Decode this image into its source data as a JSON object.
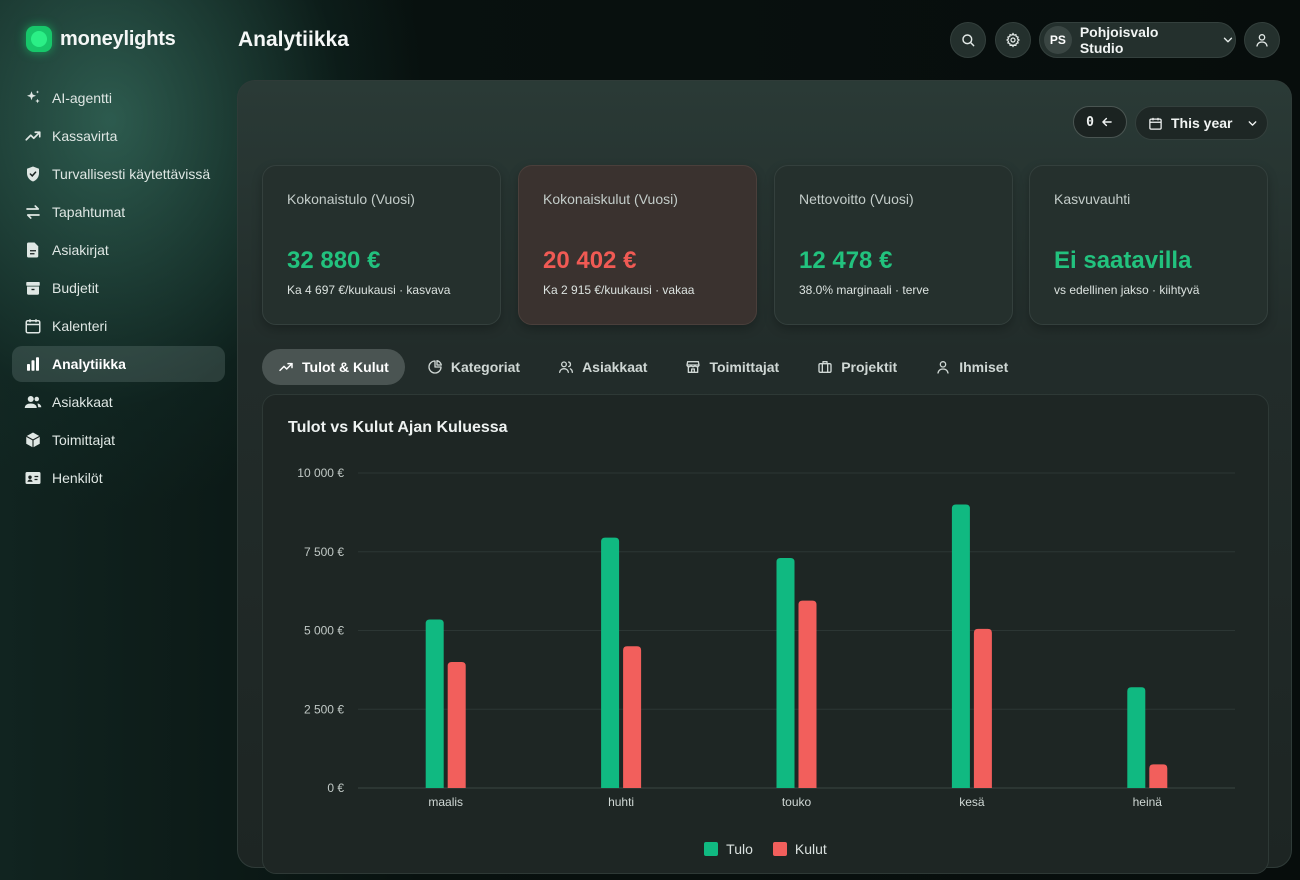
{
  "app": {
    "logo_text": "moneylights"
  },
  "sidebar": {
    "items": [
      {
        "label": "AI-agentti",
        "icon": "sparkles-icon"
      },
      {
        "label": "Kassavirta",
        "icon": "trending-up-icon"
      },
      {
        "label": "Turvallisesti käytettävissä",
        "icon": "shield-icon"
      },
      {
        "label": "Tapahtumat",
        "icon": "arrows-exchange-icon"
      },
      {
        "label": "Asiakirjat",
        "icon": "document-icon"
      },
      {
        "label": "Budjetit",
        "icon": "archive-box-icon"
      },
      {
        "label": "Kalenteri",
        "icon": "calendar-icon"
      },
      {
        "label": "Analytiikka",
        "icon": "bar-chart-icon",
        "active": true
      },
      {
        "label": "Asiakkaat",
        "icon": "users-icon"
      },
      {
        "label": "Toimittajat",
        "icon": "cube-icon"
      },
      {
        "label": "Henkilöt",
        "icon": "id-card-icon"
      }
    ]
  },
  "header": {
    "title": "Analytiikka",
    "org_initials": "PS",
    "org_name": "Pohjoisvalo Studio"
  },
  "toolbar": {
    "zero_label": "0",
    "period_label": "This year"
  },
  "kpis": [
    {
      "label": "Kokonaistulo (Vuosi)",
      "value": "32 880 €",
      "sub": "Ka 4 697 €/kuukausi · kasvava",
      "tone": "green"
    },
    {
      "label": "Kokonaiskulut (Vuosi)",
      "value": "20 402 €",
      "sub": "Ka 2 915 €/kuukausi · vakaa",
      "tone": "red"
    },
    {
      "label": "Nettovoitto (Vuosi)",
      "value": "12 478 €",
      "sub": "38.0% marginaali · terve",
      "tone": "green"
    },
    {
      "label": "Kasvuvauhti",
      "value": "Ei saatavilla",
      "sub": "vs edellinen jakso · kiihtyvä",
      "tone": "green"
    }
  ],
  "tabs": [
    {
      "label": "Tulot & Kulut",
      "icon": "trend-line-icon",
      "active": true
    },
    {
      "label": "Kategoriat",
      "icon": "pie-chart-icon"
    },
    {
      "label": "Asiakkaat",
      "icon": "users-icon"
    },
    {
      "label": "Toimittajat",
      "icon": "store-icon"
    },
    {
      "label": "Projektit",
      "icon": "briefcase-icon"
    },
    {
      "label": "Ihmiset",
      "icon": "user-icon"
    }
  ],
  "colors": {
    "accent_green": "#10b981",
    "accent_red": "#f25f5c",
    "brand_green": "#17c76a"
  },
  "chart_data": {
    "type": "bar",
    "title": "Tulot vs Kulut Ajan Kuluessa",
    "categories": [
      "maalis",
      "huhti",
      "touko",
      "kesä",
      "heinä"
    ],
    "series": [
      {
        "name": "Tulo",
        "color": "#10b981",
        "values": [
          5350,
          7950,
          7300,
          9000,
          3200
        ]
      },
      {
        "name": "Kulut",
        "color": "#f25f5c",
        "values": [
          4000,
          4500,
          5950,
          5050,
          750
        ]
      }
    ],
    "y_ticks": [
      "0 €",
      "2 500 €",
      "5 000 €",
      "7 500 €",
      "10 000 €"
    ],
    "ylim": [
      0,
      10000
    ],
    "grid": true,
    "legend": "bottom-center"
  }
}
